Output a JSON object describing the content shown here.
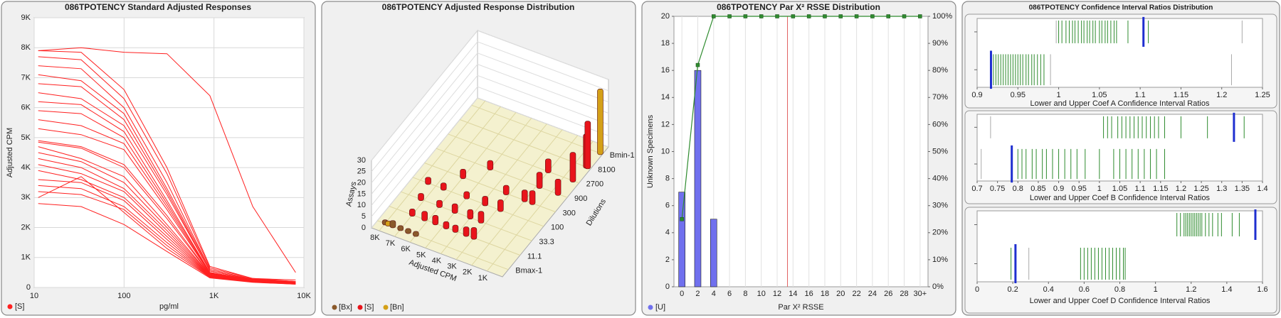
{
  "chart_data": [
    {
      "type": "line",
      "title": "086TPOTENCY Standard Adjusted Responses",
      "xlabel": "pg/ml",
      "ylabel": "Adjusted CPM",
      "xscale": "log",
      "grid": true,
      "color": "#ff2020",
      "legend": "[S]",
      "xlim": [
        10,
        10000
      ],
      "xticks": [
        10,
        100,
        {
          "value": 1000,
          "label": "1K"
        },
        {
          "value": 10000,
          "label": "10K"
        }
      ],
      "ylim": [
        0,
        9000
      ],
      "yticks": [
        0,
        {
          "value": 1000,
          "label": "1K"
        },
        {
          "value": 2000,
          "label": "2K"
        },
        {
          "value": 3000,
          "label": "3K"
        },
        {
          "value": 4000,
          "label": "4K"
        },
        {
          "value": 5000,
          "label": "5K"
        },
        {
          "value": 6000,
          "label": "6K"
        },
        {
          "value": 7000,
          "label": "7K"
        },
        {
          "value": 8000,
          "label": "8K"
        },
        {
          "value": 9000,
          "label": "9K"
        }
      ],
      "x": [
        11.1,
        33.3,
        100,
        300,
        900,
        2700,
        8100
      ],
      "series": [
        {
          "values": [
            7900,
            8000,
            7850,
            7800,
            6400,
            2700,
            500
          ]
        },
        {
          "values": [
            7900,
            7850,
            6600,
            4000,
            700,
            300,
            250
          ]
        },
        {
          "values": [
            7700,
            7600,
            6300,
            3800,
            650,
            300,
            200
          ]
        },
        {
          "values": [
            7400,
            7300,
            6000,
            3500,
            600,
            280,
            200
          ]
        },
        {
          "values": [
            7100,
            6900,
            5800,
            3300,
            600,
            280,
            200
          ]
        },
        {
          "values": [
            6800,
            6700,
            5600,
            3200,
            550,
            260,
            190
          ]
        },
        {
          "values": [
            6500,
            6300,
            5400,
            3100,
            550,
            260,
            180
          ]
        },
        {
          "values": [
            6200,
            6100,
            5200,
            2900,
            500,
            250,
            180
          ]
        },
        {
          "values": [
            5900,
            5800,
            5000,
            2800,
            500,
            250,
            170
          ]
        },
        {
          "values": [
            5600,
            5400,
            4800,
            2700,
            480,
            240,
            170
          ]
        },
        {
          "values": [
            5300,
            5100,
            4600,
            2600,
            470,
            240,
            160
          ]
        },
        {
          "values": [
            4900,
            4700,
            4100,
            2400,
            450,
            230,
            160
          ]
        },
        {
          "values": [
            4850,
            4650,
            4000,
            2300,
            440,
            230,
            150
          ]
        },
        {
          "values": [
            4700,
            4300,
            3700,
            2100,
            430,
            220,
            150
          ]
        },
        {
          "values": [
            4500,
            4200,
            3500,
            2000,
            420,
            210,
            150
          ]
        },
        {
          "values": [
            4300,
            4000,
            3300,
            1900,
            400,
            210,
            140
          ]
        },
        {
          "values": [
            4100,
            3800,
            3200,
            1800,
            390,
            200,
            140
          ]
        },
        {
          "values": [
            3900,
            3600,
            3000,
            1700,
            380,
            200,
            130
          ]
        },
        {
          "values": [
            3600,
            3500,
            2900,
            1600,
            370,
            190,
            130
          ]
        },
        {
          "values": [
            3400,
            3300,
            2700,
            1500,
            360,
            190,
            120
          ]
        },
        {
          "values": [
            3200,
            3100,
            2600,
            1400,
            350,
            180,
            120
          ]
        },
        {
          "values": [
            3000,
            3700,
            2500,
            1300,
            340,
            180,
            110
          ]
        },
        {
          "values": [
            2800,
            2700,
            2100,
            1200,
            320,
            170,
            110
          ]
        }
      ]
    },
    {
      "type": "bar3d",
      "title": "086TPOTENCY Adjusted Response Distribution",
      "xlabel": "Adjusted CPM",
      "ylabel": "Dilutions",
      "zlabel": "Assays",
      "xlim": [
        0,
        8500
      ],
      "xticks": [
        {
          "value": 1000,
          "label": "1K"
        },
        {
          "value": 2000,
          "label": "2K"
        },
        {
          "value": 3000,
          "label": "3K"
        },
        {
          "value": 4000,
          "label": "4K"
        },
        {
          "value": 5000,
          "label": "5K"
        },
        {
          "value": 6000,
          "label": "6K"
        },
        {
          "value": 7000,
          "label": "7K"
        },
        {
          "value": 8000,
          "label": "8K"
        }
      ],
      "categories": [
        "Bmax-1",
        "11.1",
        "33.3",
        "100",
        "300",
        "900",
        "2700",
        "8100",
        "Bmin-1"
      ],
      "zlim": [
        0,
        30
      ],
      "zticks": [
        0,
        5,
        10,
        15,
        20,
        25,
        30
      ],
      "series": [
        {
          "name": "[Bx]",
          "color": "#8b5a2b",
          "x": [
            8000,
            7500,
            7000,
            6500,
            6000
          ],
          "y": [
            "Bmax-1",
            "Bmax-1",
            "Bmax-1",
            "Bmax-1",
            "Bmax-1"
          ],
          "z": [
            1,
            2,
            1,
            1,
            1
          ]
        },
        {
          "name": "[S]",
          "color": "#e8141b",
          "x": [
            7000,
            6200,
            5500,
            4800,
            4200,
            3500,
            3000,
            7200,
            6000,
            5000,
            4000,
            3300,
            7500,
            6500,
            5000,
            3800,
            2800,
            6000,
            3200,
            2000,
            1500,
            5000,
            1800,
            600,
            2000,
            400,
            300,
            200
          ],
          "y": [
            "11.1",
            "11.1",
            "11.1",
            "11.1",
            "11.1",
            "11.1",
            "11.1",
            "33.3",
            "33.3",
            "33.3",
            "33.3",
            "33.3",
            "100",
            "100",
            "100",
            "100",
            "100",
            "300",
            "300",
            "300",
            "300",
            "900",
            "900",
            "900",
            "2700",
            "2700",
            "8100",
            "8100"
          ],
          "z": [
            2,
            3,
            3,
            2,
            2,
            3,
            4,
            2,
            2,
            3,
            3,
            4,
            2,
            2,
            2,
            3,
            4,
            3,
            3,
            4,
            5,
            3,
            6,
            6,
            5,
            12,
            14,
            20
          ]
        },
        {
          "name": "[Bn]",
          "color": "#d4a017",
          "x": [
            150,
            7800
          ],
          "y": [
            "Bmin-1",
            "Bmax-1"
          ],
          "z": [
            28,
            1
          ]
        }
      ]
    },
    {
      "type": "bar",
      "title": "086TPOTENCY Par X² RSSE Distribution",
      "xlabel": "Par X² RSSE",
      "ylabel": "Unknown Specimens",
      "grid": true,
      "x": [
        0,
        2,
        4,
        6,
        8,
        10,
        12,
        14,
        16,
        18,
        20,
        22,
        24,
        26,
        28,
        30
      ],
      "xlim": [
        -1,
        31
      ],
      "xticks": [
        0,
        2,
        4,
        6,
        8,
        10,
        12,
        14,
        16,
        18,
        20,
        22,
        24,
        26,
        28,
        {
          "value": 30,
          "label": "30+"
        }
      ],
      "ylim": [
        0,
        20
      ],
      "yticks": [
        0,
        2,
        4,
        6,
        8,
        10,
        12,
        14,
        16,
        18,
        20
      ],
      "y2lim": [
        0,
        100
      ],
      "y2ticks": [
        {
          "value": 0,
          "label": "0%"
        },
        {
          "value": 10,
          "label": "10%"
        },
        {
          "value": 20,
          "label": "20%"
        },
        {
          "value": 30,
          "label": "30%"
        },
        {
          "value": 40,
          "label": "40%"
        },
        {
          "value": 50,
          "label": "50%"
        },
        {
          "value": 60,
          "label": "60%"
        },
        {
          "value": 70,
          "label": "70%"
        },
        {
          "value": 80,
          "label": "80%"
        },
        {
          "value": 90,
          "label": "90%"
        },
        {
          "value": 100,
          "label": "100%"
        }
      ],
      "threshold": 13.3,
      "threshold_color": "#e06060",
      "series": [
        {
          "name": "[U]",
          "color": "#7070ee",
          "values": [
            7,
            16,
            5,
            0,
            0,
            0,
            0,
            0,
            0,
            0,
            0,
            0,
            0,
            0,
            0,
            0
          ]
        },
        {
          "color": "#2e8b2e",
          "axis": "y2",
          "values": [
            25,
            82,
            100,
            100,
            100,
            100,
            100,
            100,
            100,
            100,
            100,
            100,
            100,
            100,
            100,
            100
          ]
        }
      ]
    },
    {
      "type": "strip",
      "title": "086TPOTENCY Confidence Interval Ratios Distribution",
      "xlabel": "Lower and Upper Coef A Confidence Interval Ratios",
      "xlim": [
        0.9,
        1.25
      ],
      "xticks": [
        0.9,
        0.95,
        1,
        1.05,
        1.1,
        1.15,
        1.2,
        1.25
      ],
      "series": [
        {
          "row": "upper",
          "color": "#2e8b2e",
          "values": [
            1.0,
            1.004,
            1.009,
            1.013,
            1.017,
            1.02,
            1.024,
            1.028,
            1.031,
            1.035,
            1.038,
            1.042,
            1.045,
            1.05,
            1.053,
            1.057,
            1.06,
            1.064,
            1.068,
            1.071,
            1.085,
            1.11
          ]
        },
        {
          "row": "upper",
          "color": "#aaaaaa",
          "values": [
            0.997,
            1.225
          ]
        },
        {
          "row": "upper",
          "color": "#1f2fd0",
          "emphasis": true,
          "values": [
            1.104
          ]
        },
        {
          "row": "lower",
          "color": "#2e8b2e",
          "values": [
            0.92,
            0.923,
            0.926,
            0.929,
            0.932,
            0.935,
            0.938,
            0.941,
            0.944,
            0.947,
            0.95,
            0.953,
            0.956,
            0.96,
            0.963,
            0.967,
            0.97,
            0.974,
            0.978,
            0.982
          ]
        },
        {
          "row": "lower",
          "color": "#aaaaaa",
          "values": [
            0.99,
            1.212
          ]
        },
        {
          "row": "lower",
          "color": "#1f2fd0",
          "emphasis": true,
          "values": [
            0.917
          ]
        }
      ]
    },
    {
      "type": "strip",
      "xlabel": "Lower and Upper Coef B Confidence Interval Ratios",
      "xlim": [
        0.7,
        1.4
      ],
      "xticks": [
        0.7,
        0.75,
        0.8,
        0.85,
        0.9,
        0.95,
        1,
        1.05,
        1.1,
        1.15,
        1.2,
        1.25,
        1.3,
        1.35,
        1.4
      ],
      "series": [
        {
          "row": "upper",
          "color": "#2e8b2e",
          "values": [
            1.01,
            1.02,
            1.03,
            1.045,
            1.055,
            1.065,
            1.075,
            1.085,
            1.095,
            1.105,
            1.115,
            1.125,
            1.135,
            1.145,
            1.16,
            1.2,
            1.265,
            1.355
          ]
        },
        {
          "row": "upper",
          "color": "#aaaaaa",
          "values": [
            0.733
          ]
        },
        {
          "row": "upper",
          "color": "#1f2fd0",
          "emphasis": true,
          "values": [
            1.33
          ]
        },
        {
          "row": "lower",
          "color": "#2e8b2e",
          "values": [
            0.8,
            0.81,
            0.82,
            0.835,
            0.845,
            0.86,
            0.87,
            0.885,
            0.9,
            0.915,
            0.93,
            0.945,
            0.965,
            1.0,
            1.035,
            1.05,
            1.065,
            1.08,
            1.095,
            1.11,
            1.125,
            1.14,
            1.16
          ]
        },
        {
          "row": "lower",
          "color": "#aaaaaa",
          "values": [
            0.71
          ]
        },
        {
          "row": "lower",
          "color": "#1f2fd0",
          "emphasis": true,
          "values": [
            0.785
          ]
        }
      ]
    },
    {
      "type": "strip",
      "xlabel": "Lower and Upper Coef D Confidence Interval Ratios",
      "xlim": [
        0,
        1.6
      ],
      "xticks": [
        0,
        0.2,
        0.4,
        0.6,
        0.8,
        1,
        1.2,
        1.4,
        1.6
      ],
      "series": [
        {
          "row": "upper",
          "color": "#2e8b2e",
          "values": [
            1.12,
            1.14,
            1.16,
            1.17,
            1.18,
            1.19,
            1.2,
            1.21,
            1.22,
            1.23,
            1.24,
            1.25,
            1.26,
            1.28,
            1.3,
            1.32,
            1.35,
            1.37,
            1.43,
            1.47
          ]
        },
        {
          "row": "upper",
          "color": "#1f2fd0",
          "emphasis": true,
          "values": [
            1.56
          ]
        },
        {
          "row": "lower",
          "color": "#2e8b2e",
          "values": [
            0.19,
            0.58,
            0.6,
            0.62,
            0.64,
            0.66,
            0.68,
            0.7,
            0.72,
            0.74,
            0.76,
            0.78,
            0.8,
            0.82,
            0.83
          ]
        },
        {
          "row": "lower",
          "color": "#aaaaaa",
          "values": [
            0.29
          ]
        },
        {
          "row": "lower",
          "color": "#1f2fd0",
          "emphasis": true,
          "values": [
            0.215
          ]
        }
      ]
    }
  ]
}
